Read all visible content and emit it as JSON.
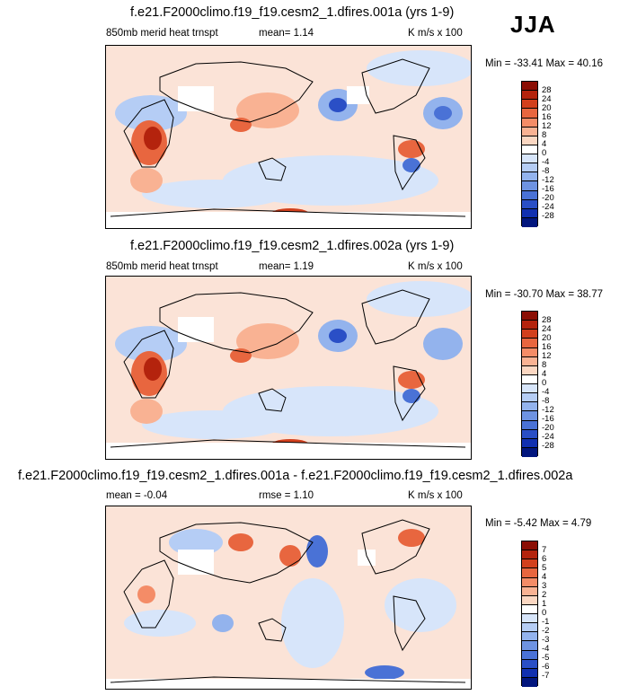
{
  "season": "JJA",
  "panels": [
    {
      "title": "f.e21.F2000climo.f19_f19.cesm2_1.dfires.001a (yrs 1-9)",
      "variable": "850mb merid heat trnspt",
      "stat_text": "mean=  1.14",
      "units": "K m/s x 100",
      "minmax": "Min = -33.41 Max = 40.16",
      "colorbar_ticks": [
        "28",
        "24",
        "20",
        "16",
        "12",
        "8",
        "4",
        "0",
        "-4",
        "-8",
        "-12",
        "-16",
        "-20",
        "-24",
        "-28"
      ]
    },
    {
      "title": "f.e21.F2000climo.f19_f19.cesm2_1.dfires.002a (yrs 1-9)",
      "variable": "850mb merid heat trnspt",
      "stat_text": "mean=  1.19",
      "units": "K m/s x 100",
      "minmax": "Min = -30.70 Max = 38.77",
      "colorbar_ticks": [
        "28",
        "24",
        "20",
        "16",
        "12",
        "8",
        "4",
        "0",
        "-4",
        "-8",
        "-12",
        "-16",
        "-20",
        "-24",
        "-28"
      ]
    },
    {
      "title": "f.e21.F2000climo.f19_f19.cesm2_1.dfires.001a - f.e21.F2000climo.f19_f19.cesm2_1.dfires.002a",
      "stat_left": "mean = -0.04",
      "stat_text": "rmse =  1.10",
      "units": "K m/s x 100",
      "minmax": "Min = -5.42 Max =  4.79",
      "colorbar_ticks": [
        "7",
        "6",
        "5",
        "4",
        "3",
        "2",
        "1",
        "0",
        "-1",
        "-2",
        "-3",
        "-4",
        "-5",
        "-6",
        "-7"
      ]
    }
  ],
  "colorbar_colors": [
    "#8b0e04",
    "#b4230d",
    "#d2401d",
    "#e8663f",
    "#f48c67",
    "#f9b293",
    "#fbd7c2",
    "#ffffff",
    "#d7e5fa",
    "#b5cdf5",
    "#93b3ed",
    "#6e93e2",
    "#4a72d6",
    "#2a4fc6",
    "#1130b0",
    "#02167e"
  ],
  "chart_data": [
    {
      "type": "heatmap",
      "title": "f.e21.F2000climo.f19_f19.cesm2_1.dfires.001a (yrs 1-9)",
      "variable": "850mb merid heat trnspt",
      "season": "JJA",
      "units": "K m/s x 100",
      "mean": 1.14,
      "min": -33.41,
      "max": 40.16,
      "contour_levels": [
        -28,
        -24,
        -20,
        -16,
        -12,
        -8,
        -4,
        0,
        4,
        8,
        12,
        16,
        20,
        24,
        28
      ]
    },
    {
      "type": "heatmap",
      "title": "f.e21.F2000climo.f19_f19.cesm2_1.dfires.002a (yrs 1-9)",
      "variable": "850mb merid heat trnspt",
      "season": "JJA",
      "units": "K m/s x 100",
      "mean": 1.19,
      "min": -30.7,
      "max": 38.77,
      "contour_levels": [
        -28,
        -24,
        -20,
        -16,
        -12,
        -8,
        -4,
        0,
        4,
        8,
        12,
        16,
        20,
        24,
        28
      ]
    },
    {
      "type": "heatmap",
      "title": "f.e21.F2000climo.f19_f19.cesm2_1.dfires.001a - f.e21.F2000climo.f19_f19.cesm2_1.dfires.002a",
      "season": "JJA",
      "units": "K m/s x 100",
      "mean": -0.04,
      "rmse": 1.1,
      "min": -5.42,
      "max": 4.79,
      "contour_levels": [
        -7,
        -6,
        -5,
        -4,
        -3,
        -2,
        -1,
        0,
        1,
        2,
        3,
        4,
        5,
        6,
        7
      ]
    }
  ]
}
